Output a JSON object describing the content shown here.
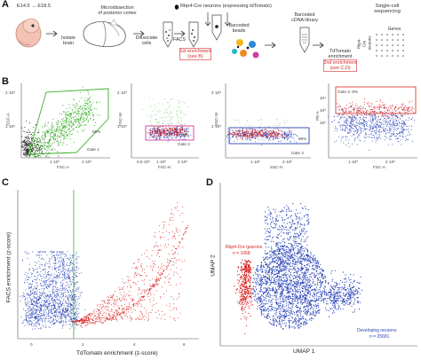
{
  "panels": {
    "A": "A",
    "B": "B",
    "C": "C",
    "D": "D"
  },
  "panel_a": {
    "stage_label": "E14.5 → E18.5",
    "isolate": "Isolate\nbrain",
    "microdissection": "Microdissection\nof posterior cortex",
    "dissociate": "Dissociate\ncells",
    "legend_neurons": "Rbp4-Cre neurons (expressing tdTomato)",
    "facs": "FACS",
    "facs_enrich": "1st enrichment\n(see B)",
    "barcoded_beads": "Barcoded\nbeads",
    "barcoded_cdna": "Barcoded\ncDNA library",
    "tdtomato_enrich": "TdTomato\nenrichment",
    "second_enrich": "2nd enrichment\n(see C,D)",
    "rbp4cre_neurons": "Rbp4-Cre\nneurons",
    "single_cell": "Single-cell\nsequencing",
    "genes": "Genes",
    "cell_label": "Cell"
  },
  "panel_b": {
    "plot1": {
      "ylabel": "SSC-A",
      "xlabel": "FSC-A",
      "gate": "Gate 1",
      "pct": "55%",
      "yticks": [
        "2·10⁵",
        "1·10⁵"
      ],
      "xticks": [
        "1·10⁵",
        "2·10⁵"
      ]
    },
    "plot2": {
      "ylabel": "FSC-W",
      "xlabel": "FSC-H",
      "gate": "Gate 2",
      "pct": "98%",
      "yticks": [
        "2·10⁵",
        "1·10⁵"
      ],
      "xticks": [
        "0.5·10⁵",
        "1·10⁵",
        "2·10⁵"
      ]
    },
    "plot3": {
      "ylabel": "SSC-W",
      "xlabel": "SSC-H",
      "gate": "Gate 3",
      "pct": "99%",
      "yticks": [
        "2·10⁵",
        "1·10⁵"
      ],
      "xticks": [
        "1·10⁵",
        "2·10⁵"
      ]
    },
    "plot4": {
      "ylabel": "PE-A",
      "xlabel": "FSC-A",
      "gate": "Gate 4: 8%",
      "yticks": [
        "10⁴",
        "10³",
        "10²"
      ],
      "xticks": [
        "1·10⁵",
        "2·10⁵"
      ]
    }
  },
  "panel_c": {
    "xlabel": "TdTomato enrichment (z-score)",
    "ylabel": "FACS enrichment (z-score)",
    "xticks": [
      "0",
      "2",
      "4",
      "6"
    ],
    "yticks": [
      "0",
      "1",
      "2",
      "3"
    ]
  },
  "panel_d": {
    "xlabel": "UMAP 1",
    "ylabel": "UMAP 2",
    "red_label": "Rbp4-Cre neurons",
    "red_n": "n = 1068",
    "blue_label": "Developing neurons",
    "blue_n": "n = 25681"
  },
  "colors": {
    "red": "#d92020",
    "blue": "#2a45b8",
    "green": "#3cae2c",
    "black": "#222222",
    "gate_red": "#e04030"
  }
}
